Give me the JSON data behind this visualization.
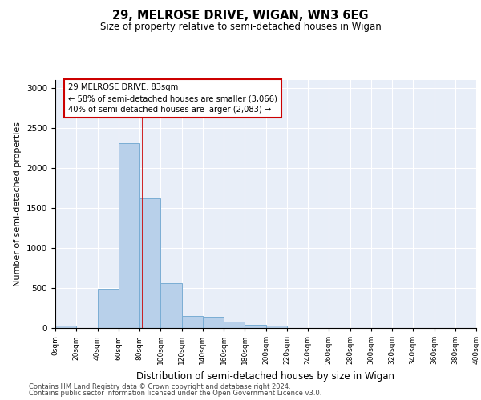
{
  "title1": "29, MELROSE DRIVE, WIGAN, WN3 6EG",
  "title2": "Size of property relative to semi-detached houses in Wigan",
  "xlabel": "Distribution of semi-detached houses by size in Wigan",
  "ylabel": "Number of semi-detached properties",
  "footnote1": "Contains HM Land Registry data © Crown copyright and database right 2024.",
  "footnote2": "Contains public sector information licensed under the Open Government Licence v3.0.",
  "annotation_line1": "29 MELROSE DRIVE: 83sqm",
  "annotation_line2": "← 58% of semi-detached houses are smaller (3,066)",
  "annotation_line3": "40% of semi-detached houses are larger (2,083) →",
  "property_size": 83,
  "bar_edges": [
    0,
    20,
    40,
    60,
    80,
    100,
    120,
    140,
    160,
    180,
    200,
    220,
    240,
    260,
    280,
    300,
    320,
    340,
    360,
    380,
    400
  ],
  "bar_heights": [
    30,
    0,
    490,
    2310,
    1620,
    560,
    150,
    145,
    80,
    45,
    30,
    0,
    0,
    0,
    0,
    0,
    0,
    0,
    0,
    0
  ],
  "bar_color": "#b8d0ea",
  "bar_edge_color": "#7aadd4",
  "vline_color": "#cc0000",
  "background_color": "#e8eef8",
  "ylim": [
    0,
    3100
  ],
  "xlim": [
    0,
    400
  ],
  "yticks": [
    0,
    500,
    1000,
    1500,
    2000,
    2500,
    3000
  ],
  "xtick_step": 20
}
